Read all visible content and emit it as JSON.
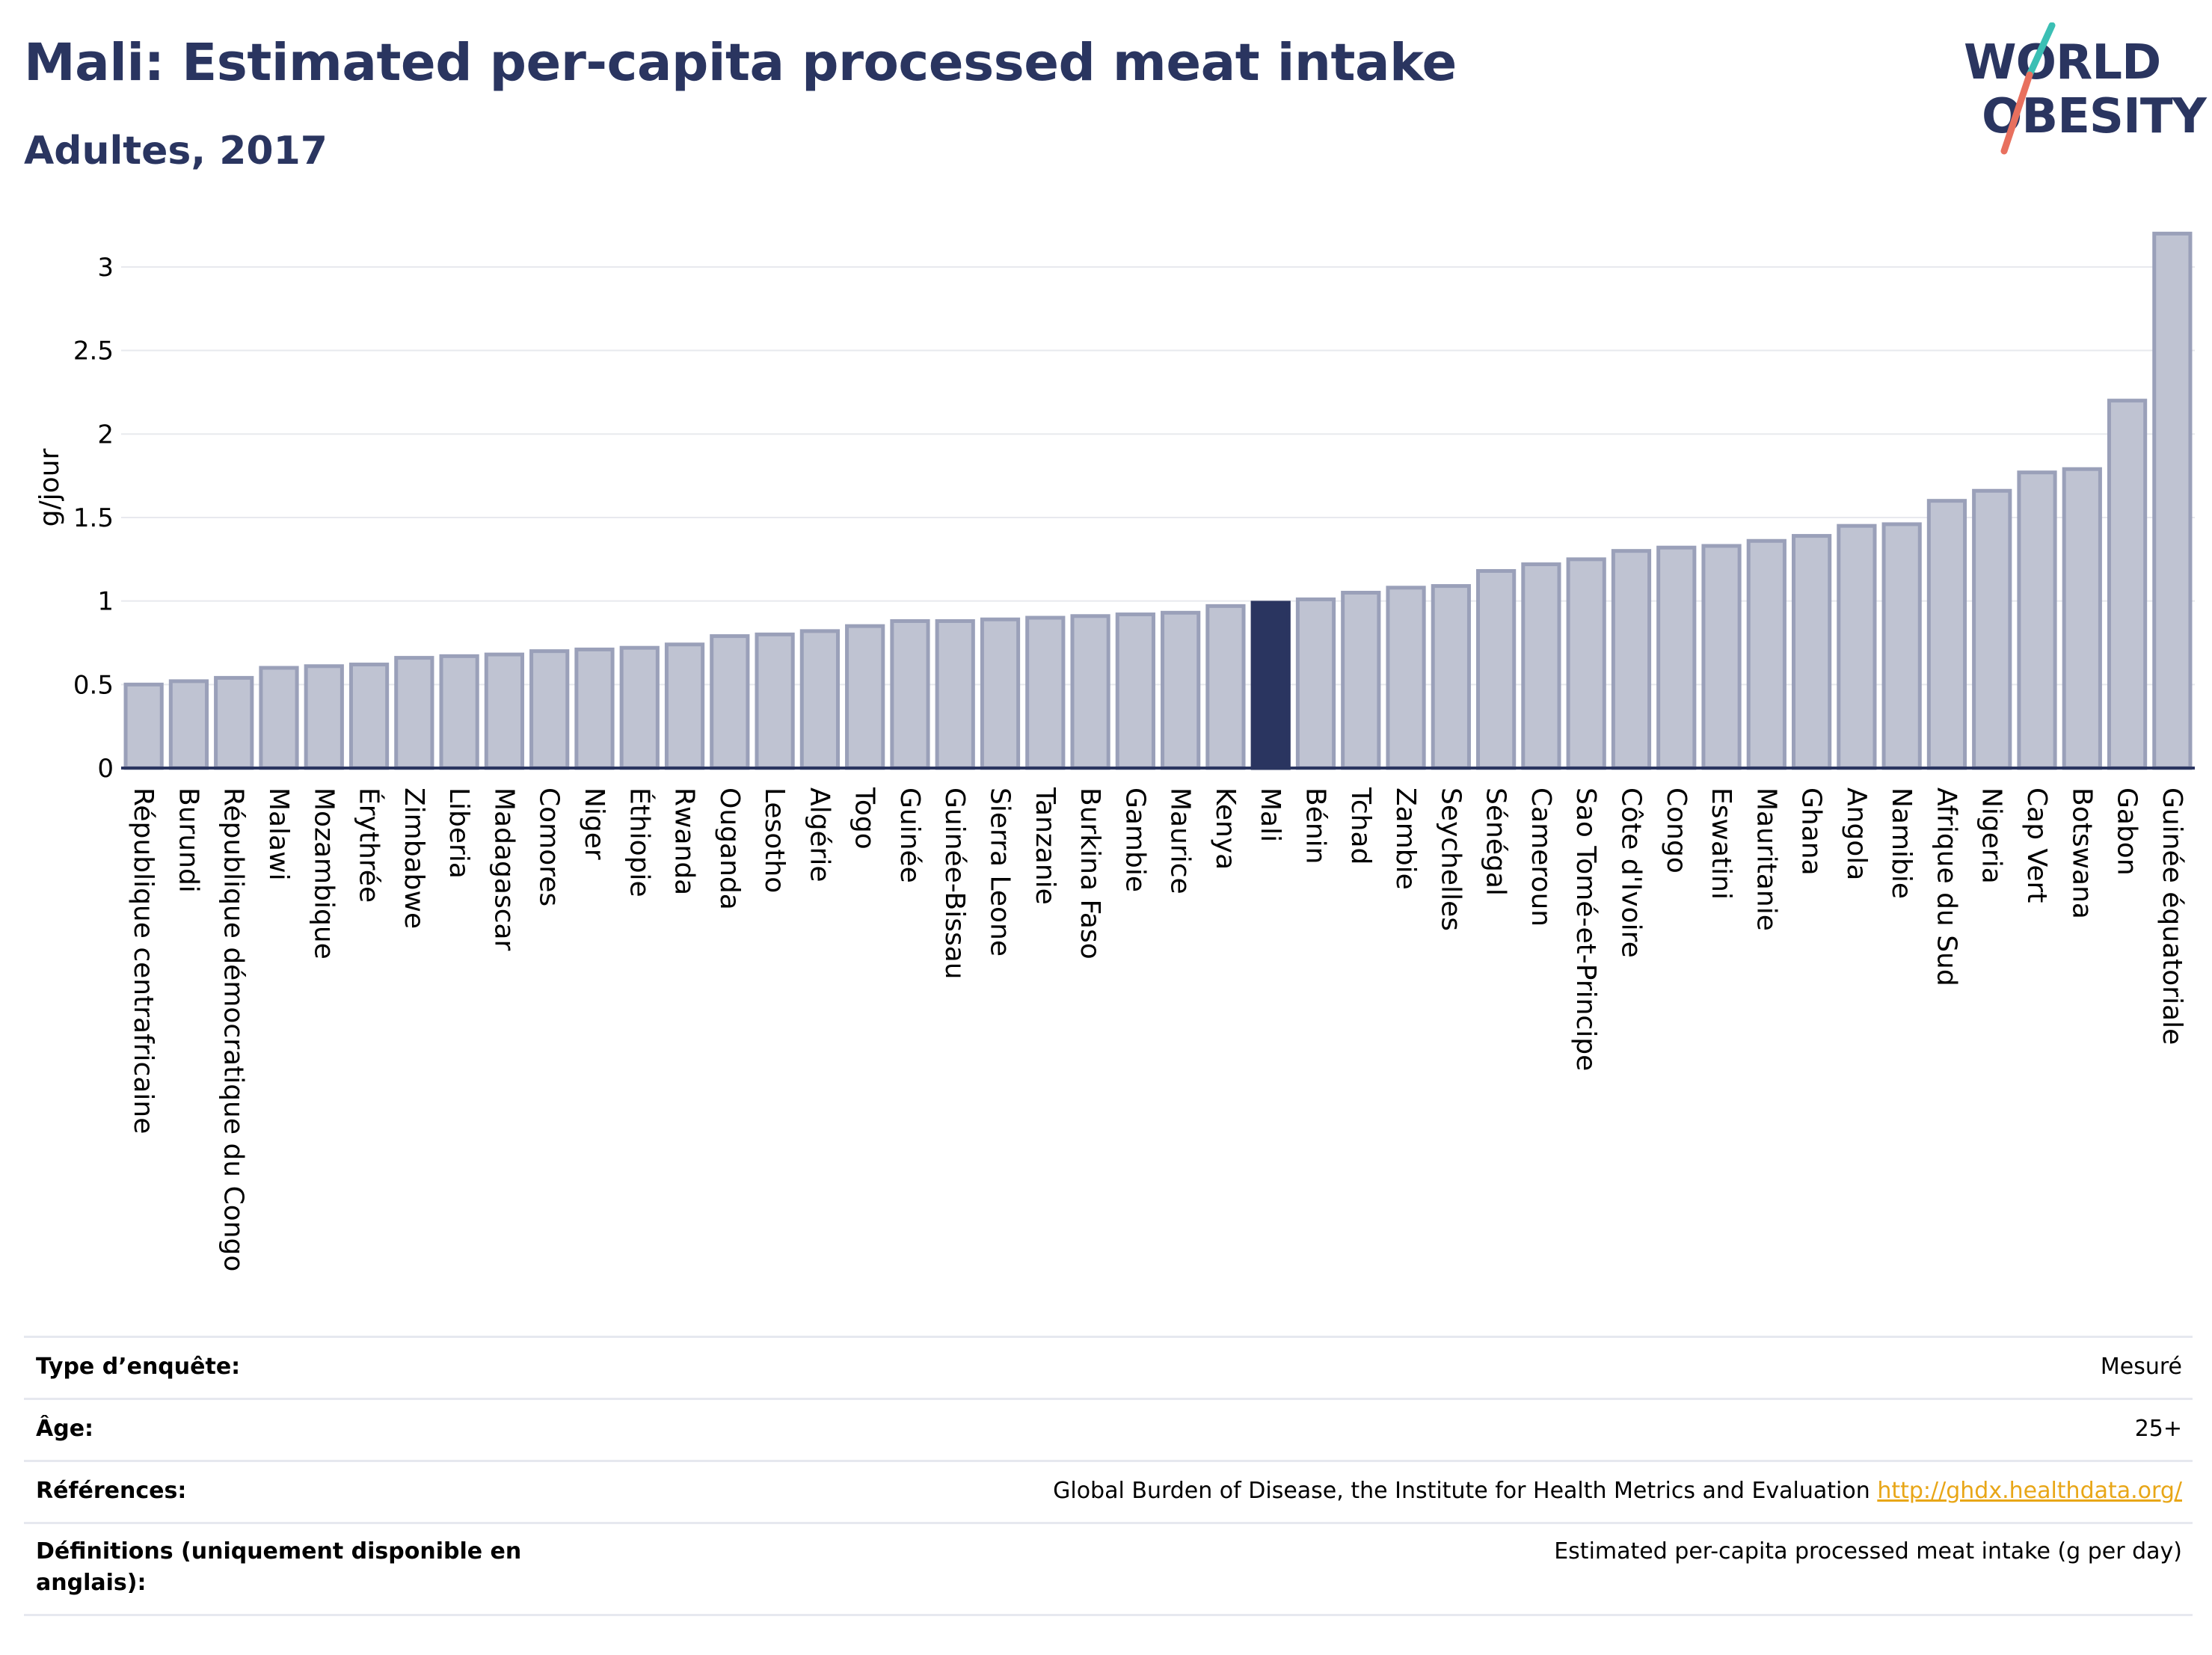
{
  "header": {
    "title": "Mali: Estimated per-capita processed meat intake",
    "subtitle": "Adultes, 2017"
  },
  "logo": {
    "line1": "WORLD",
    "line2": "OBESITY"
  },
  "colors": {
    "highlight": "#2a3560",
    "bar_fill": "#bfc3d2",
    "bar_stroke": "#9aa0b9",
    "slash_top": "#3bbfb4",
    "slash_bottom": "#e8705e"
  },
  "chart_data": {
    "type": "bar",
    "ylabel": "g/jour",
    "ylim": [
      0,
      3.3
    ],
    "yticks": [
      0,
      0.5,
      1,
      1.5,
      2,
      2.5,
      3
    ],
    "ytick_labels": [
      "0",
      "0.5",
      "1",
      "1.5",
      "2",
      "2.5",
      "3"
    ],
    "grid": true,
    "highlight": "Mali",
    "categories": [
      "République centrafricaine",
      "Burundi",
      "République démocratique du Congo",
      "Malawi",
      "Mozambique",
      "Érythrée",
      "Zimbabwe",
      "Liberia",
      "Madagascar",
      "Comores",
      "Niger",
      "Éthiopie",
      "Rwanda",
      "Ouganda",
      "Lesotho",
      "Algérie",
      "Togo",
      "Guinée",
      "Guinée-Bissau",
      "Sierra Leone",
      "Tanzanie",
      "Burkina Faso",
      "Gambie",
      "Maurice",
      "Kenya",
      "Mali",
      "Bénin",
      "Tchad",
      "Zambie",
      "Seychelles",
      "Sénégal",
      "Cameroun",
      "Sao Tomé-et-Principe",
      "Côte d'Ivoire",
      "Congo",
      "Eswatini",
      "Mauritanie",
      "Ghana",
      "Angola",
      "Namibie",
      "Afrique du Sud",
      "Nigeria",
      "Cap Vert",
      "Botswana",
      "Gabon",
      "Guinée équatoriale"
    ],
    "values": [
      0.5,
      0.52,
      0.54,
      0.6,
      0.61,
      0.62,
      0.66,
      0.67,
      0.68,
      0.7,
      0.71,
      0.72,
      0.74,
      0.79,
      0.8,
      0.82,
      0.85,
      0.88,
      0.88,
      0.89,
      0.9,
      0.91,
      0.92,
      0.93,
      0.97,
      0.99,
      1.01,
      1.05,
      1.08,
      1.09,
      1.18,
      1.22,
      1.25,
      1.3,
      1.32,
      1.33,
      1.36,
      1.39,
      1.45,
      1.46,
      1.6,
      1.66,
      1.77,
      1.79,
      2.2,
      3.2
    ]
  },
  "footer": {
    "rows": [
      {
        "label": "Type d’enquête:",
        "value": "Mesuré"
      },
      {
        "label": "Âge:",
        "value": "25+"
      },
      {
        "label": "Références:",
        "value": "Global Burden of Disease, the Institute for Health Metrics and Evaluation",
        "link": "http://ghdx.healthdata.org/"
      },
      {
        "label": "Définitions (uniquement disponible en anglais):",
        "value": "Estimated per-capita processed meat intake (g per day)"
      }
    ]
  }
}
